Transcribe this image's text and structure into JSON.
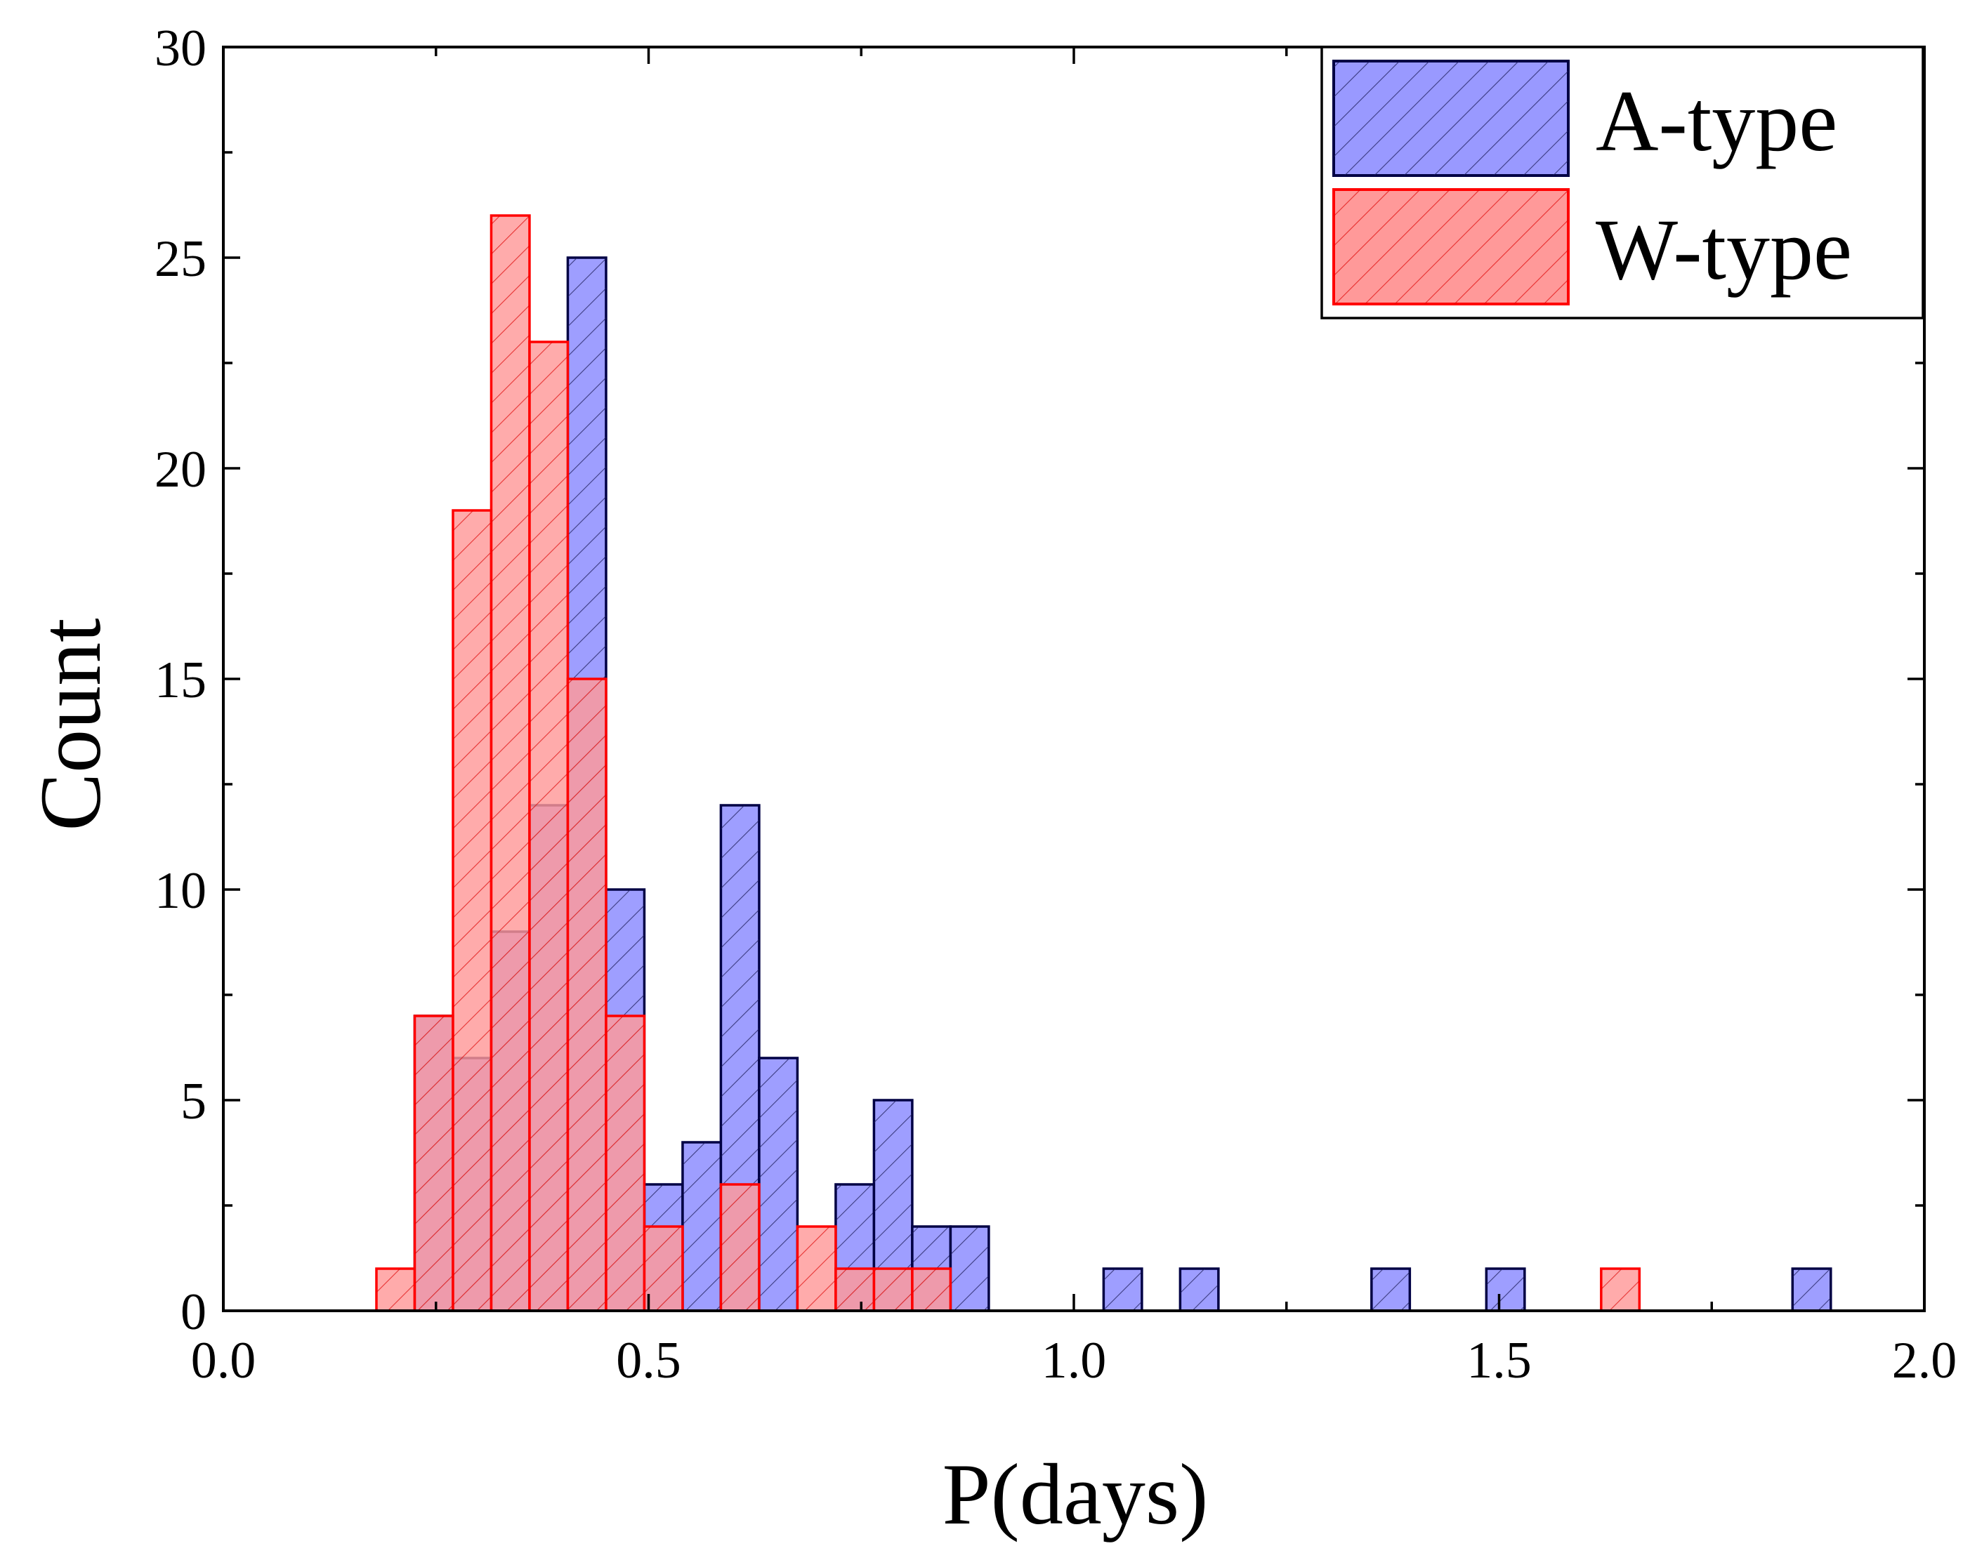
{
  "chart_data": {
    "type": "bar",
    "subtype": "overlapping-histogram",
    "title": "",
    "xlabel": "P(days)",
    "ylabel": "Count",
    "xlim": [
      0.0,
      2.0
    ],
    "ylim": [
      0,
      30
    ],
    "x_ticks": [
      "0.0",
      "0.5",
      "1.0",
      "1.5",
      "2.0"
    ],
    "y_ticks": [
      "0",
      "5",
      "10",
      "15",
      "20",
      "25",
      "30"
    ],
    "grid": false,
    "legend_position": "top-right",
    "series": [
      {
        "name": "A-type",
        "fill_color": "#9999ff",
        "edge_color": "#000044",
        "bins": [
          {
            "x0": 0.225,
            "x1": 0.27,
            "count": 7
          },
          {
            "x0": 0.27,
            "x1": 0.315,
            "count": 6
          },
          {
            "x0": 0.315,
            "x1": 0.36,
            "count": 9
          },
          {
            "x0": 0.36,
            "x1": 0.405,
            "count": 12
          },
          {
            "x0": 0.405,
            "x1": 0.45,
            "count": 25
          },
          {
            "x0": 0.45,
            "x1": 0.495,
            "count": 10
          },
          {
            "x0": 0.495,
            "x1": 0.54,
            "count": 3
          },
          {
            "x0": 0.54,
            "x1": 0.585,
            "count": 4
          },
          {
            "x0": 0.585,
            "x1": 0.63,
            "count": 12
          },
          {
            "x0": 0.63,
            "x1": 0.675,
            "count": 6
          },
          {
            "x0": 0.72,
            "x1": 0.765,
            "count": 3
          },
          {
            "x0": 0.765,
            "x1": 0.81,
            "count": 5
          },
          {
            "x0": 0.81,
            "x1": 0.855,
            "count": 2
          },
          {
            "x0": 0.855,
            "x1": 0.9,
            "count": 2
          },
          {
            "x0": 1.035,
            "x1": 1.08,
            "count": 1
          },
          {
            "x0": 1.125,
            "x1": 1.17,
            "count": 1
          },
          {
            "x0": 1.35,
            "x1": 1.395,
            "count": 1
          },
          {
            "x0": 1.485,
            "x1": 1.53,
            "count": 1
          },
          {
            "x0": 1.845,
            "x1": 1.89,
            "count": 1
          }
        ]
      },
      {
        "name": "W-type",
        "fill_color": "#ff9999",
        "edge_color": "#ff0000",
        "bins": [
          {
            "x0": 0.18,
            "x1": 0.225,
            "count": 1
          },
          {
            "x0": 0.225,
            "x1": 0.27,
            "count": 7
          },
          {
            "x0": 0.27,
            "x1": 0.315,
            "count": 19
          },
          {
            "x0": 0.315,
            "x1": 0.36,
            "count": 26
          },
          {
            "x0": 0.36,
            "x1": 0.405,
            "count": 23
          },
          {
            "x0": 0.405,
            "x1": 0.45,
            "count": 15
          },
          {
            "x0": 0.45,
            "x1": 0.495,
            "count": 7
          },
          {
            "x0": 0.495,
            "x1": 0.54,
            "count": 2
          },
          {
            "x0": 0.585,
            "x1": 0.63,
            "count": 3
          },
          {
            "x0": 0.675,
            "x1": 0.72,
            "count": 2
          },
          {
            "x0": 0.72,
            "x1": 0.765,
            "count": 1
          },
          {
            "x0": 0.765,
            "x1": 0.81,
            "count": 1
          },
          {
            "x0": 0.81,
            "x1": 0.855,
            "count": 1
          },
          {
            "x0": 1.62,
            "x1": 1.665,
            "count": 1
          }
        ]
      }
    ]
  }
}
